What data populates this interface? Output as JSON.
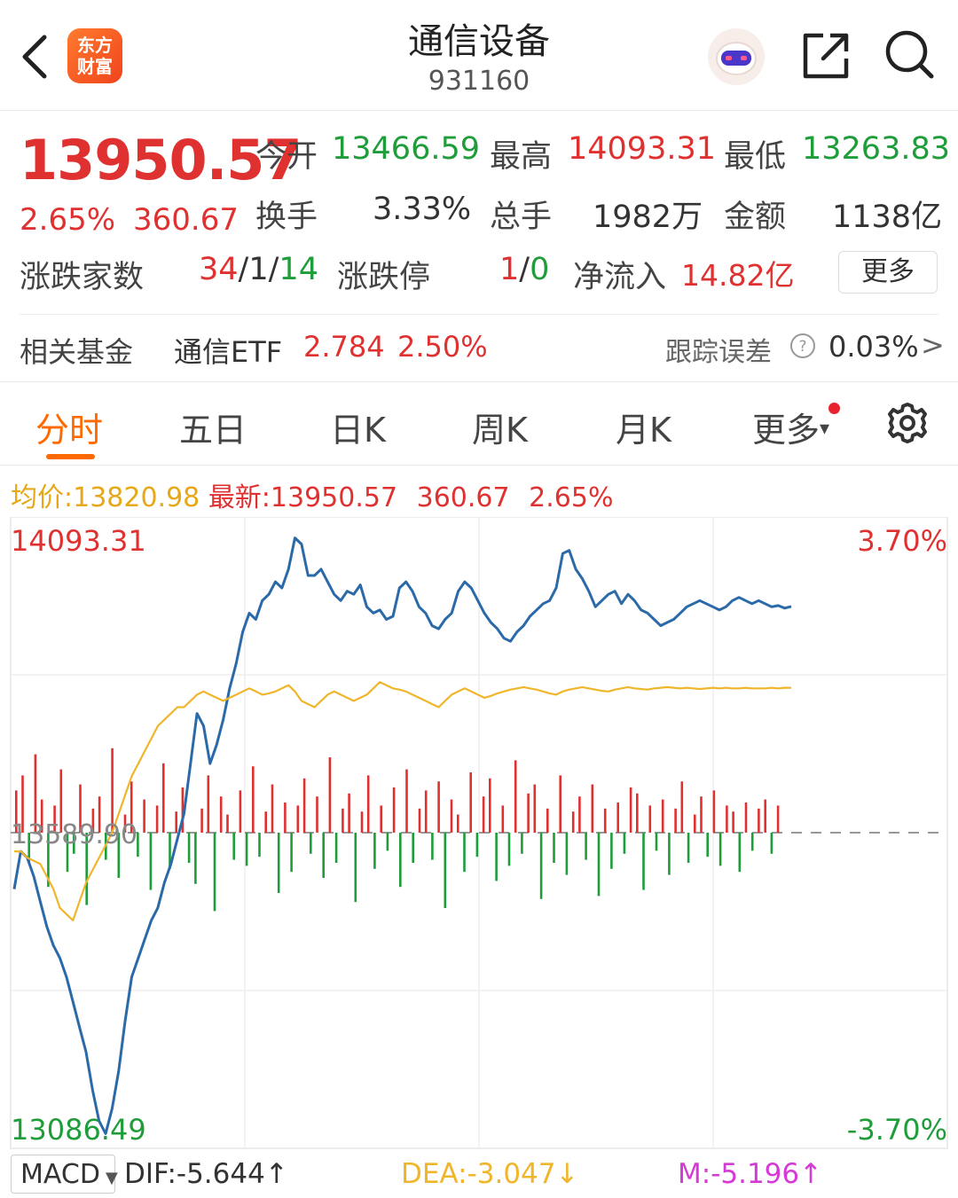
{
  "header": {
    "logo_line1": "东方",
    "logo_line2": "财富",
    "title": "通信设备",
    "code": "931160"
  },
  "quote": {
    "price": "13950.57",
    "change_pct": "2.65%",
    "change": "360.67",
    "open_label": "今开",
    "open": "13466.59",
    "high_label": "最高",
    "high": "14093.31",
    "low_label": "最低",
    "low": "13263.83",
    "turnover_label": "换手",
    "turnover": "3.33%",
    "volume_label": "总手",
    "volume": "1982万",
    "amount_label": "金额",
    "amount": "1138亿",
    "breadth_label": "涨跌家数",
    "breadth_up": "34",
    "breadth_flat": "1",
    "breadth_down": "14",
    "breadth_sep": "/",
    "limit_label": "涨跌停",
    "limit_up": "1",
    "limit_down": "0",
    "netflow_label": "净流入",
    "netflow": "14.82亿",
    "more_label": "更多"
  },
  "fund": {
    "label": "相关基金",
    "name": "通信ETF",
    "price": "2.784",
    "pct": "2.50%",
    "tracking_label": "跟踪误差",
    "tracking_value": "0.03%",
    "arrow": ">"
  },
  "tabs": [
    {
      "label": "分时",
      "active": true
    },
    {
      "label": "五日"
    },
    {
      "label": "日K"
    },
    {
      "label": "周K"
    },
    {
      "label": "月K"
    },
    {
      "label": "更多"
    }
  ],
  "chart_header": {
    "avg_label": "均价:",
    "avg": "13820.98",
    "latest_label": "最新:",
    "latest": "13950.57",
    "change": "360.67",
    "pct": "2.65%"
  },
  "chart_data": {
    "type": "line",
    "y_max_label": "14093.31",
    "y_min_label": "13086.49",
    "y_mid_label": "13589.90",
    "pct_max_label": "3.70%",
    "pct_min_label": "-3.70%",
    "ylim": [
      13086.49,
      14093.31
    ],
    "prev_close": 13589.9,
    "series": [
      {
        "values": [
          13500,
          13560,
          13550,
          13520,
          13480,
          13440,
          13410,
          13390,
          13360,
          13320,
          13280,
          13240,
          13180,
          13130,
          13110,
          13150,
          13210,
          13290,
          13360,
          13390,
          13420,
          13450,
          13470,
          13510,
          13540,
          13580,
          13620,
          13700,
          13780,
          13760,
          13700,
          13730,
          13770,
          13820,
          13860,
          13910,
          13940,
          13930,
          13960,
          13970,
          13990,
          13980,
          14010,
          14060,
          14050,
          14000,
          14000,
          14010,
          13990,
          13970,
          13960,
          13975,
          13970,
          13985,
          13950,
          13940,
          13945,
          13930,
          13935,
          13980,
          13990,
          13975,
          13950,
          13940,
          13920,
          13915,
          13930,
          13940,
          13975,
          13990,
          13980,
          13960,
          13940,
          13925,
          13915,
          13900,
          13895,
          13910,
          13920,
          13935,
          13945,
          13955,
          13960,
          13980,
          14035,
          14040,
          14010,
          13995,
          13975,
          13950,
          13960,
          13970,
          13975,
          13955,
          13970,
          13960,
          13945,
          13940,
          13930,
          13920,
          13925,
          13930,
          13940,
          13950,
          13955,
          13960,
          13955,
          13950,
          13945,
          13950,
          13960,
          13965,
          13960,
          13955,
          13960,
          13955,
          13950,
          13952,
          13948,
          13950.57
        ]
      },
      {
        "values": [
          13560,
          13560,
          13550,
          13545,
          13540,
          13520,
          13500,
          13470,
          13460,
          13450,
          13480,
          13510,
          13530,
          13550,
          13570,
          13590,
          13620,
          13650,
          13680,
          13700,
          13720,
          13740,
          13760,
          13770,
          13780,
          13790,
          13790,
          13800,
          13810,
          13815,
          13810,
          13805,
          13800,
          13805,
          13810,
          13815,
          13820,
          13815,
          13810,
          13812,
          13815,
          13820,
          13825,
          13815,
          13800,
          13795,
          13790,
          13800,
          13810,
          13815,
          13810,
          13805,
          13800,
          13805,
          13810,
          13820,
          13830,
          13825,
          13820,
          13818,
          13815,
          13810,
          13805,
          13800,
          13795,
          13790,
          13800,
          13810,
          13815,
          13820,
          13815,
          13810,
          13805,
          13808,
          13812,
          13815,
          13818,
          13820,
          13822,
          13820,
          13818,
          13815,
          13812,
          13810,
          13815,
          13818,
          13820,
          13822,
          13820,
          13818,
          13816,
          13815,
          13818,
          13820,
          13822,
          13820,
          13819,
          13818,
          13820,
          13821,
          13822,
          13821,
          13820,
          13821,
          13820,
          13819,
          13820,
          13821,
          13820,
          13821,
          13820,
          13820,
          13821,
          13820,
          13820,
          13820,
          13821,
          13820,
          13821,
          13820.98
        ]
      }
    ],
    "bars": [
      1.4,
      1.9,
      -1.0,
      2.6,
      1.1,
      -1.8,
      0.9,
      2.1,
      -1.3,
      -0.7,
      1.6,
      -2.4,
      0.8,
      1.2,
      -0.9,
      2.8,
      -1.5,
      0.6,
      1.7,
      -0.8,
      1.1,
      -1.9,
      0.9,
      2.3,
      -1.2,
      0.7,
      1.5,
      -1.0,
      -1.7,
      0.8,
      1.9,
      -2.6,
      1.2,
      0.6,
      -0.9,
      1.4,
      -1.1,
      2.2,
      -0.8,
      0.7,
      1.6,
      -2.0,
      1.0,
      -1.3,
      0.9,
      1.8,
      -0.7,
      1.2,
      -1.5,
      2.5,
      -1.0,
      0.8,
      1.3,
      -2.3,
      0.7,
      1.9,
      -1.2,
      0.9,
      -0.6,
      1.5,
      -1.8,
      2.1,
      -1.0,
      0.8,
      1.4,
      -0.9,
      1.7,
      -2.5,
      1.1,
      0.6,
      -1.3,
      2.0,
      -0.8,
      1.2,
      1.8,
      -1.6,
      0.9,
      -1.1,
      2.4,
      -0.7,
      1.3,
      1.6,
      -2.2,
      0.8,
      -1.0,
      1.9,
      -1.4,
      0.7,
      1.2,
      -0.9,
      1.6,
      -2.1,
      0.8,
      -1.2,
      1.0,
      -0.7,
      1.5,
      1.3,
      -1.9,
      0.9,
      -0.6,
      1.1,
      -1.4,
      0.8,
      1.7,
      -1.0,
      0.6,
      1.2,
      -0.8,
      1.4,
      -1.1,
      0.9,
      0.7,
      -1.3,
      1.0,
      -0.6,
      0.8,
      1.1,
      -0.7,
      0.9
    ]
  },
  "macd": {
    "select": "MACD",
    "dif": "DIF:-5.644",
    "dif_arrow": "↑",
    "dea": "DEA:-3.047",
    "dea_arrow": "↓",
    "m": "M:-5.196",
    "m_arrow": "↑"
  },
  "colors": {
    "up": "#e03131",
    "down": "#1f9d3a",
    "price_line": "#2b6aa8",
    "avg_line": "#f0b62b",
    "accent": "#ff6a00",
    "macd_dea": "#f0b62b",
    "macd_m": "#d63ad6"
  }
}
